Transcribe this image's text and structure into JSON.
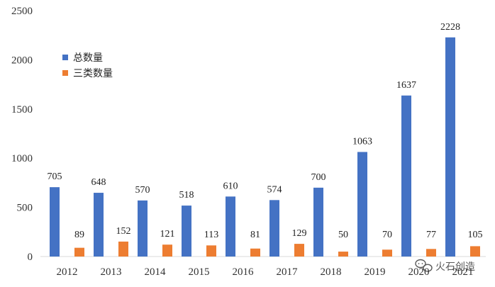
{
  "chart_data": {
    "type": "bar",
    "categories": [
      "2012",
      "2013",
      "2014",
      "2015",
      "2016",
      "2017",
      "2018",
      "2019",
      "2020",
      "2021"
    ],
    "series": [
      {
        "name": "总数量",
        "color": "#4472C4",
        "values": [
          705,
          648,
          570,
          518,
          610,
          574,
          700,
          1063,
          1637,
          2228
        ]
      },
      {
        "name": "三类数量",
        "color": "#ED7D31",
        "values": [
          89,
          152,
          121,
          113,
          81,
          129,
          50,
          70,
          77,
          105
        ]
      }
    ],
    "y_ticks": [
      0,
      500,
      1000,
      1500,
      2000,
      2500
    ],
    "ylim": [
      0,
      2500
    ],
    "grid": false,
    "legend_position": "top-left",
    "data_labels": true
  },
  "watermark": {
    "text": "火石创造",
    "icon": "chat-bubbles-icon"
  }
}
